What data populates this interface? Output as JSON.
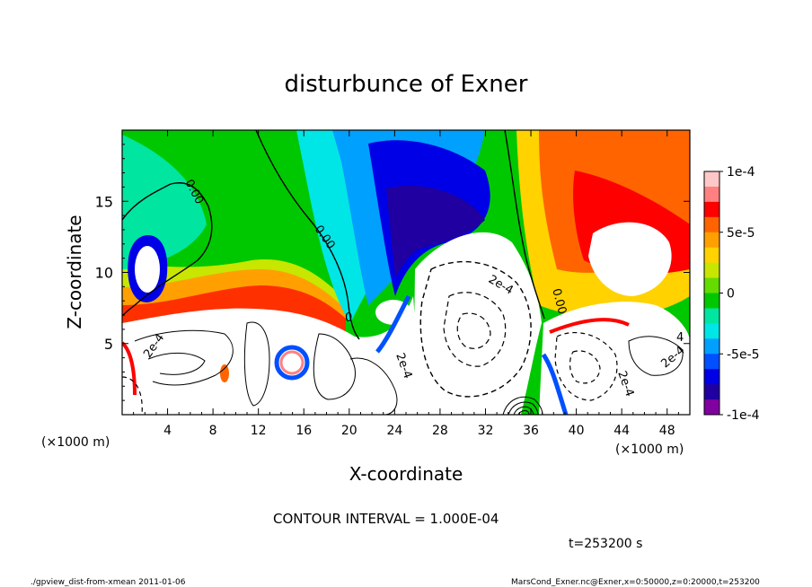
{
  "chart_data": {
    "type": "heatmap",
    "title": "disturbunce of Exner",
    "xlabel": "X-coordinate",
    "ylabel": "Z-coordinate",
    "x_unit": "(×1000 m)",
    "y_unit": "(×1000 m)",
    "xlim": [
      0,
      50
    ],
    "ylim": [
      0,
      20
    ],
    "x_ticks": [
      4,
      8,
      12,
      16,
      20,
      24,
      28,
      32,
      36,
      40,
      44,
      48
    ],
    "y_ticks": [
      5,
      10,
      15
    ],
    "colorbar": {
      "range": [
        -0.0001,
        0.0001
      ],
      "tick_labels": [
        "1e-4",
        "5e-5",
        "0",
        "-5e-5",
        "-1e-4"
      ],
      "tick_values": [
        0.0001,
        5e-05,
        0,
        -5e-05,
        -0.0001
      ],
      "colors": [
        "#ffc8c8",
        "#ff8080",
        "#ff0000",
        "#ff6400",
        "#ffa000",
        "#ffd200",
        "#c8e600",
        "#64dc00",
        "#00c800",
        "#00e6a0",
        "#00e6e6",
        "#00a0ff",
        "#0050ff",
        "#0000e6",
        "#2000a0",
        "#8000a0"
      ]
    },
    "contour_labels": [
      "0.00",
      "0.00",
      "0.00",
      "2e-4",
      "2e-4",
      "2e-4",
      "2e-4",
      "0",
      "2e-4",
      "4"
    ],
    "contour_interval_text": "CONTOUR INTERVAL = 1.000E-04",
    "time_text": "t=253200 s"
  },
  "footer": {
    "left": "./gpview_dist-from-xmean  2011-01-06",
    "right": "MarsCond_Exner.nc@Exner,x=0:50000,z=0:20000,t=253200"
  }
}
